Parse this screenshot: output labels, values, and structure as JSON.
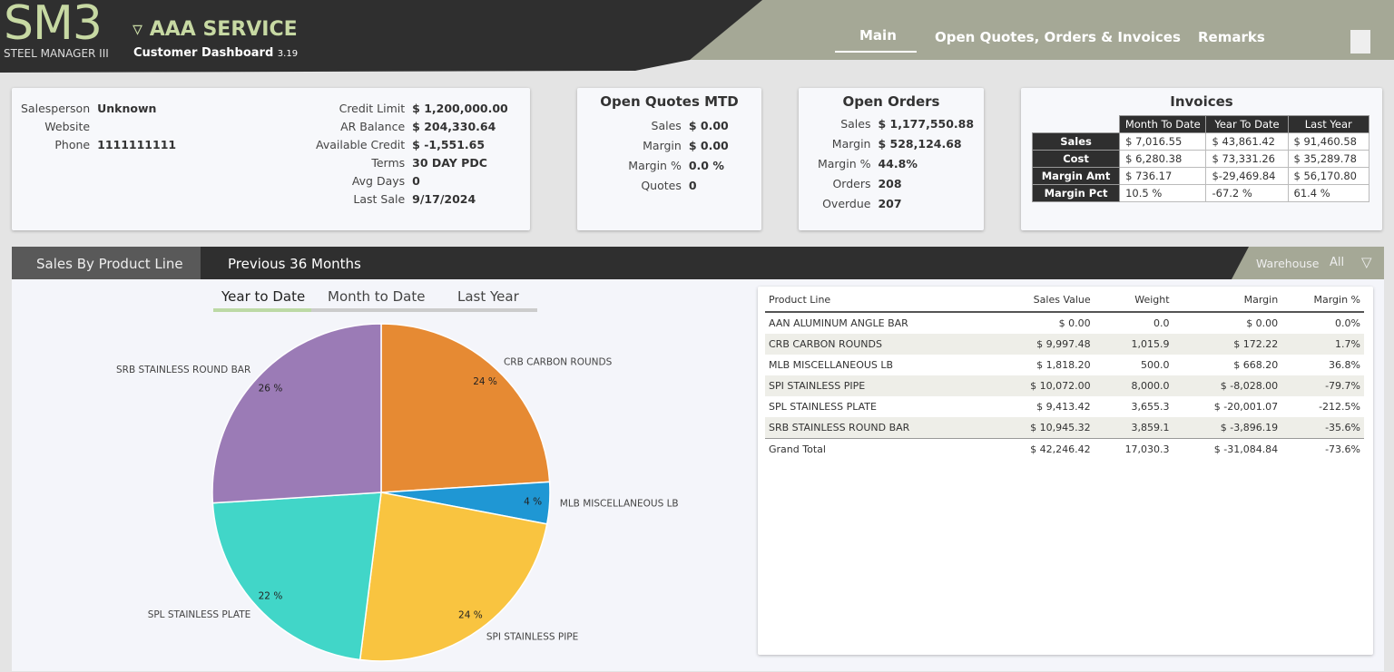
{
  "header": {
    "logo": "SM3",
    "logo_sub": "STEEL MANAGER III",
    "customer": "AAA SERVICE",
    "app": "Customer Dashboard",
    "version": "3.19",
    "nav": [
      "Main",
      "Open Quotes, Orders & Invoices",
      "Remarks"
    ]
  },
  "info": {
    "left": [
      {
        "label": "Salesperson",
        "value": "Unknown"
      },
      {
        "label": "Website"
      },
      {
        "label": "Phone",
        "value": "1111111111"
      }
    ],
    "right": [
      {
        "label": "Credit Limit",
        "value": "$ 1,200,000.00"
      },
      {
        "label": "AR Balance",
        "value": "$ 204,330.64"
      },
      {
        "label": "Available Credit",
        "value": "$ -1,551.65"
      },
      {
        "label": "Terms",
        "value": "30 DAY PDC"
      },
      {
        "label": "Avg Days",
        "value": "0"
      },
      {
        "label": "Last Sale",
        "value": "9/17/2024"
      }
    ]
  },
  "quotes": {
    "title": "Open Quotes MTD",
    "rows": [
      {
        "label": "Sales",
        "value": "$ 0.00"
      },
      {
        "label": "Margin",
        "value": "$ 0.00"
      },
      {
        "label": "Margin %",
        "value": "0.0 %"
      },
      {
        "label": "Quotes",
        "value": "0"
      }
    ]
  },
  "orders": {
    "title": "Open Orders",
    "rows": [
      {
        "label": "Sales",
        "value": "$ 1,177,550.88"
      },
      {
        "label": "Margin",
        "value": "$ 528,124.68"
      },
      {
        "label": "Margin %",
        "value": "44.8%"
      },
      {
        "label": "Orders",
        "value": "208"
      },
      {
        "label": "Overdue",
        "value": "207"
      }
    ]
  },
  "invoices": {
    "title": "Invoices",
    "columns": [
      "Month To Date",
      "Year To Date",
      "Last Year"
    ],
    "rows": [
      [
        "Sales",
        "$ 7,016.55",
        "$ 43,861.42",
        "$ 91,460.58"
      ],
      [
        "Cost",
        "$ 6,280.38",
        "$ 73,331.26",
        "$ 35,289.78"
      ],
      [
        "Margin Amt",
        "$ 736.17",
        "$-29,469.84",
        "$ 56,170.80"
      ],
      [
        "Margin Pct",
        "10.5 %",
        "-67.2 %",
        "61.4 %"
      ]
    ]
  },
  "tabs": {
    "items": [
      "Sales By Product Line",
      "Previous 36 Months"
    ],
    "warehouse_label": "Warehouse",
    "warehouse_value": "All"
  },
  "subtabs": [
    "Year to Date",
    "Month to Date",
    "Last Year"
  ],
  "chart_data": {
    "type": "pie",
    "categories": [
      "CRB CARBON ROUNDS",
      "MLB MISCELLANEOUS LB",
      "SPI STAINLESS PIPE",
      "SPL STAINLESS PLATE",
      "SRB STAINLESS ROUND BAR"
    ],
    "values": [
      24,
      4,
      24,
      22,
      26
    ],
    "value_labels": [
      "24 %",
      "4 %",
      "24 %",
      "22 %",
      "26 %"
    ],
    "colors": [
      "#e68a33",
      "#1f97d4",
      "#f9c440",
      "#41d6c8",
      "#9b7bb6"
    ]
  },
  "table": {
    "columns": [
      "Product Line",
      "Sales Value",
      "Weight",
      "Margin",
      "Margin %"
    ],
    "rows": [
      [
        "AAN ALUMINUM ANGLE BAR",
        "$ 0.00",
        "0.0",
        "$ 0.00",
        "0.0%"
      ],
      [
        "CRB CARBON ROUNDS",
        "$ 9,997.48",
        "1,015.9",
        "$ 172.22",
        "1.7%"
      ],
      [
        "MLB MISCELLANEOUS LB",
        "$ 1,818.20",
        "500.0",
        "$ 668.20",
        "36.8%"
      ],
      [
        "SPI STAINLESS PIPE",
        "$ 10,072.00",
        "8,000.0",
        "$ -8,028.00",
        "-79.7%"
      ],
      [
        "SPL STAINLESS PLATE",
        "$ 9,413.42",
        "3,655.3",
        "$ -20,001.07",
        "-212.5%"
      ],
      [
        "SRB STAINLESS ROUND BAR",
        "$ 10,945.32",
        "3,859.1",
        "$ -3,896.19",
        "-35.6%"
      ]
    ],
    "total": [
      "Grand Total",
      "$ 42,246.42",
      "17,030.3",
      "$ -31,084.84",
      "-73.6%"
    ]
  }
}
